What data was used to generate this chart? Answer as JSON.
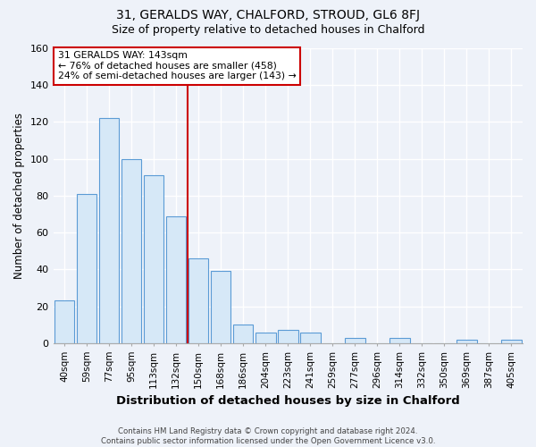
{
  "title": "31, GERALDS WAY, CHALFORD, STROUD, GL6 8FJ",
  "subtitle": "Size of property relative to detached houses in Chalford",
  "xlabel": "Distribution of detached houses by size in Chalford",
  "ylabel": "Number of detached properties",
  "bar_labels": [
    "40sqm",
    "59sqm",
    "77sqm",
    "95sqm",
    "113sqm",
    "132sqm",
    "150sqm",
    "168sqm",
    "186sqm",
    "204sqm",
    "223sqm",
    "241sqm",
    "259sqm",
    "277sqm",
    "296sqm",
    "314sqm",
    "332sqm",
    "350sqm",
    "369sqm",
    "387sqm",
    "405sqm"
  ],
  "bar_values": [
    23,
    81,
    122,
    100,
    91,
    69,
    46,
    39,
    10,
    6,
    7,
    6,
    0,
    3,
    0,
    3,
    0,
    0,
    2,
    0,
    2
  ],
  "bar_color": "#d6e8f7",
  "bar_edge_color": "#5b9bd5",
  "vline_x_index": 6,
  "vline_color": "#cc0000",
  "annotation_title": "31 GERALDS WAY: 143sqm",
  "annotation_line1": "← 76% of detached houses are smaller (458)",
  "annotation_line2": "24% of semi-detached houses are larger (143) →",
  "annotation_box_edge": "#cc0000",
  "ylim": [
    0,
    160
  ],
  "yticks": [
    0,
    20,
    40,
    60,
    80,
    100,
    120,
    140,
    160
  ],
  "footer1": "Contains HM Land Registry data © Crown copyright and database right 2024.",
  "footer2": "Contains public sector information licensed under the Open Government Licence v3.0.",
  "bg_color": "#eef2f9",
  "plot_bg_color": "#eef2f9",
  "grid_color": "#ffffff",
  "title_fontsize": 10,
  "subtitle_fontsize": 9
}
